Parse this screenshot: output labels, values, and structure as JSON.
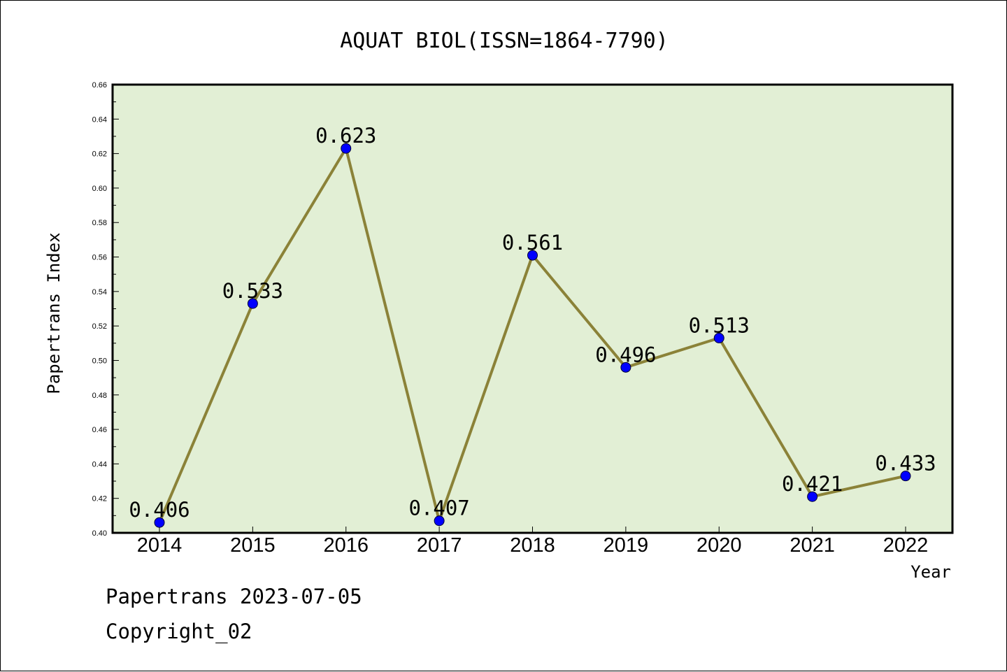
{
  "chart_data": {
    "type": "line",
    "title": "AQUAT BIOL(ISSN=1864-7790)",
    "xlabel": "Year",
    "ylabel": "Papertrans Index",
    "categories": [
      "2014",
      "2015",
      "2016",
      "2017",
      "2018",
      "2019",
      "2020",
      "2021",
      "2022"
    ],
    "values": [
      0.406,
      0.533,
      0.623,
      0.407,
      0.561,
      0.496,
      0.513,
      0.421,
      0.433
    ],
    "data_labels": [
      "0.406",
      "0.533",
      "0.623",
      "0.407",
      "0.561",
      "0.496",
      "0.513",
      "0.421",
      "0.433"
    ],
    "ylim": [
      0.4,
      0.66
    ],
    "yticks": [
      "0.40",
      "0.42",
      "0.44",
      "0.46",
      "0.48",
      "0.50",
      "0.52",
      "0.54",
      "0.56",
      "0.58",
      "0.60",
      "0.62",
      "0.64",
      "0.66"
    ],
    "grid": false,
    "legend": "none",
    "colors": {
      "plot_background": "#e2efd5",
      "line": "#8b8238",
      "marker": "#0000ff",
      "axis": "#000000"
    }
  },
  "footer": {
    "line1": "Papertrans 2023-07-05",
    "line2": "Copyright_02"
  }
}
